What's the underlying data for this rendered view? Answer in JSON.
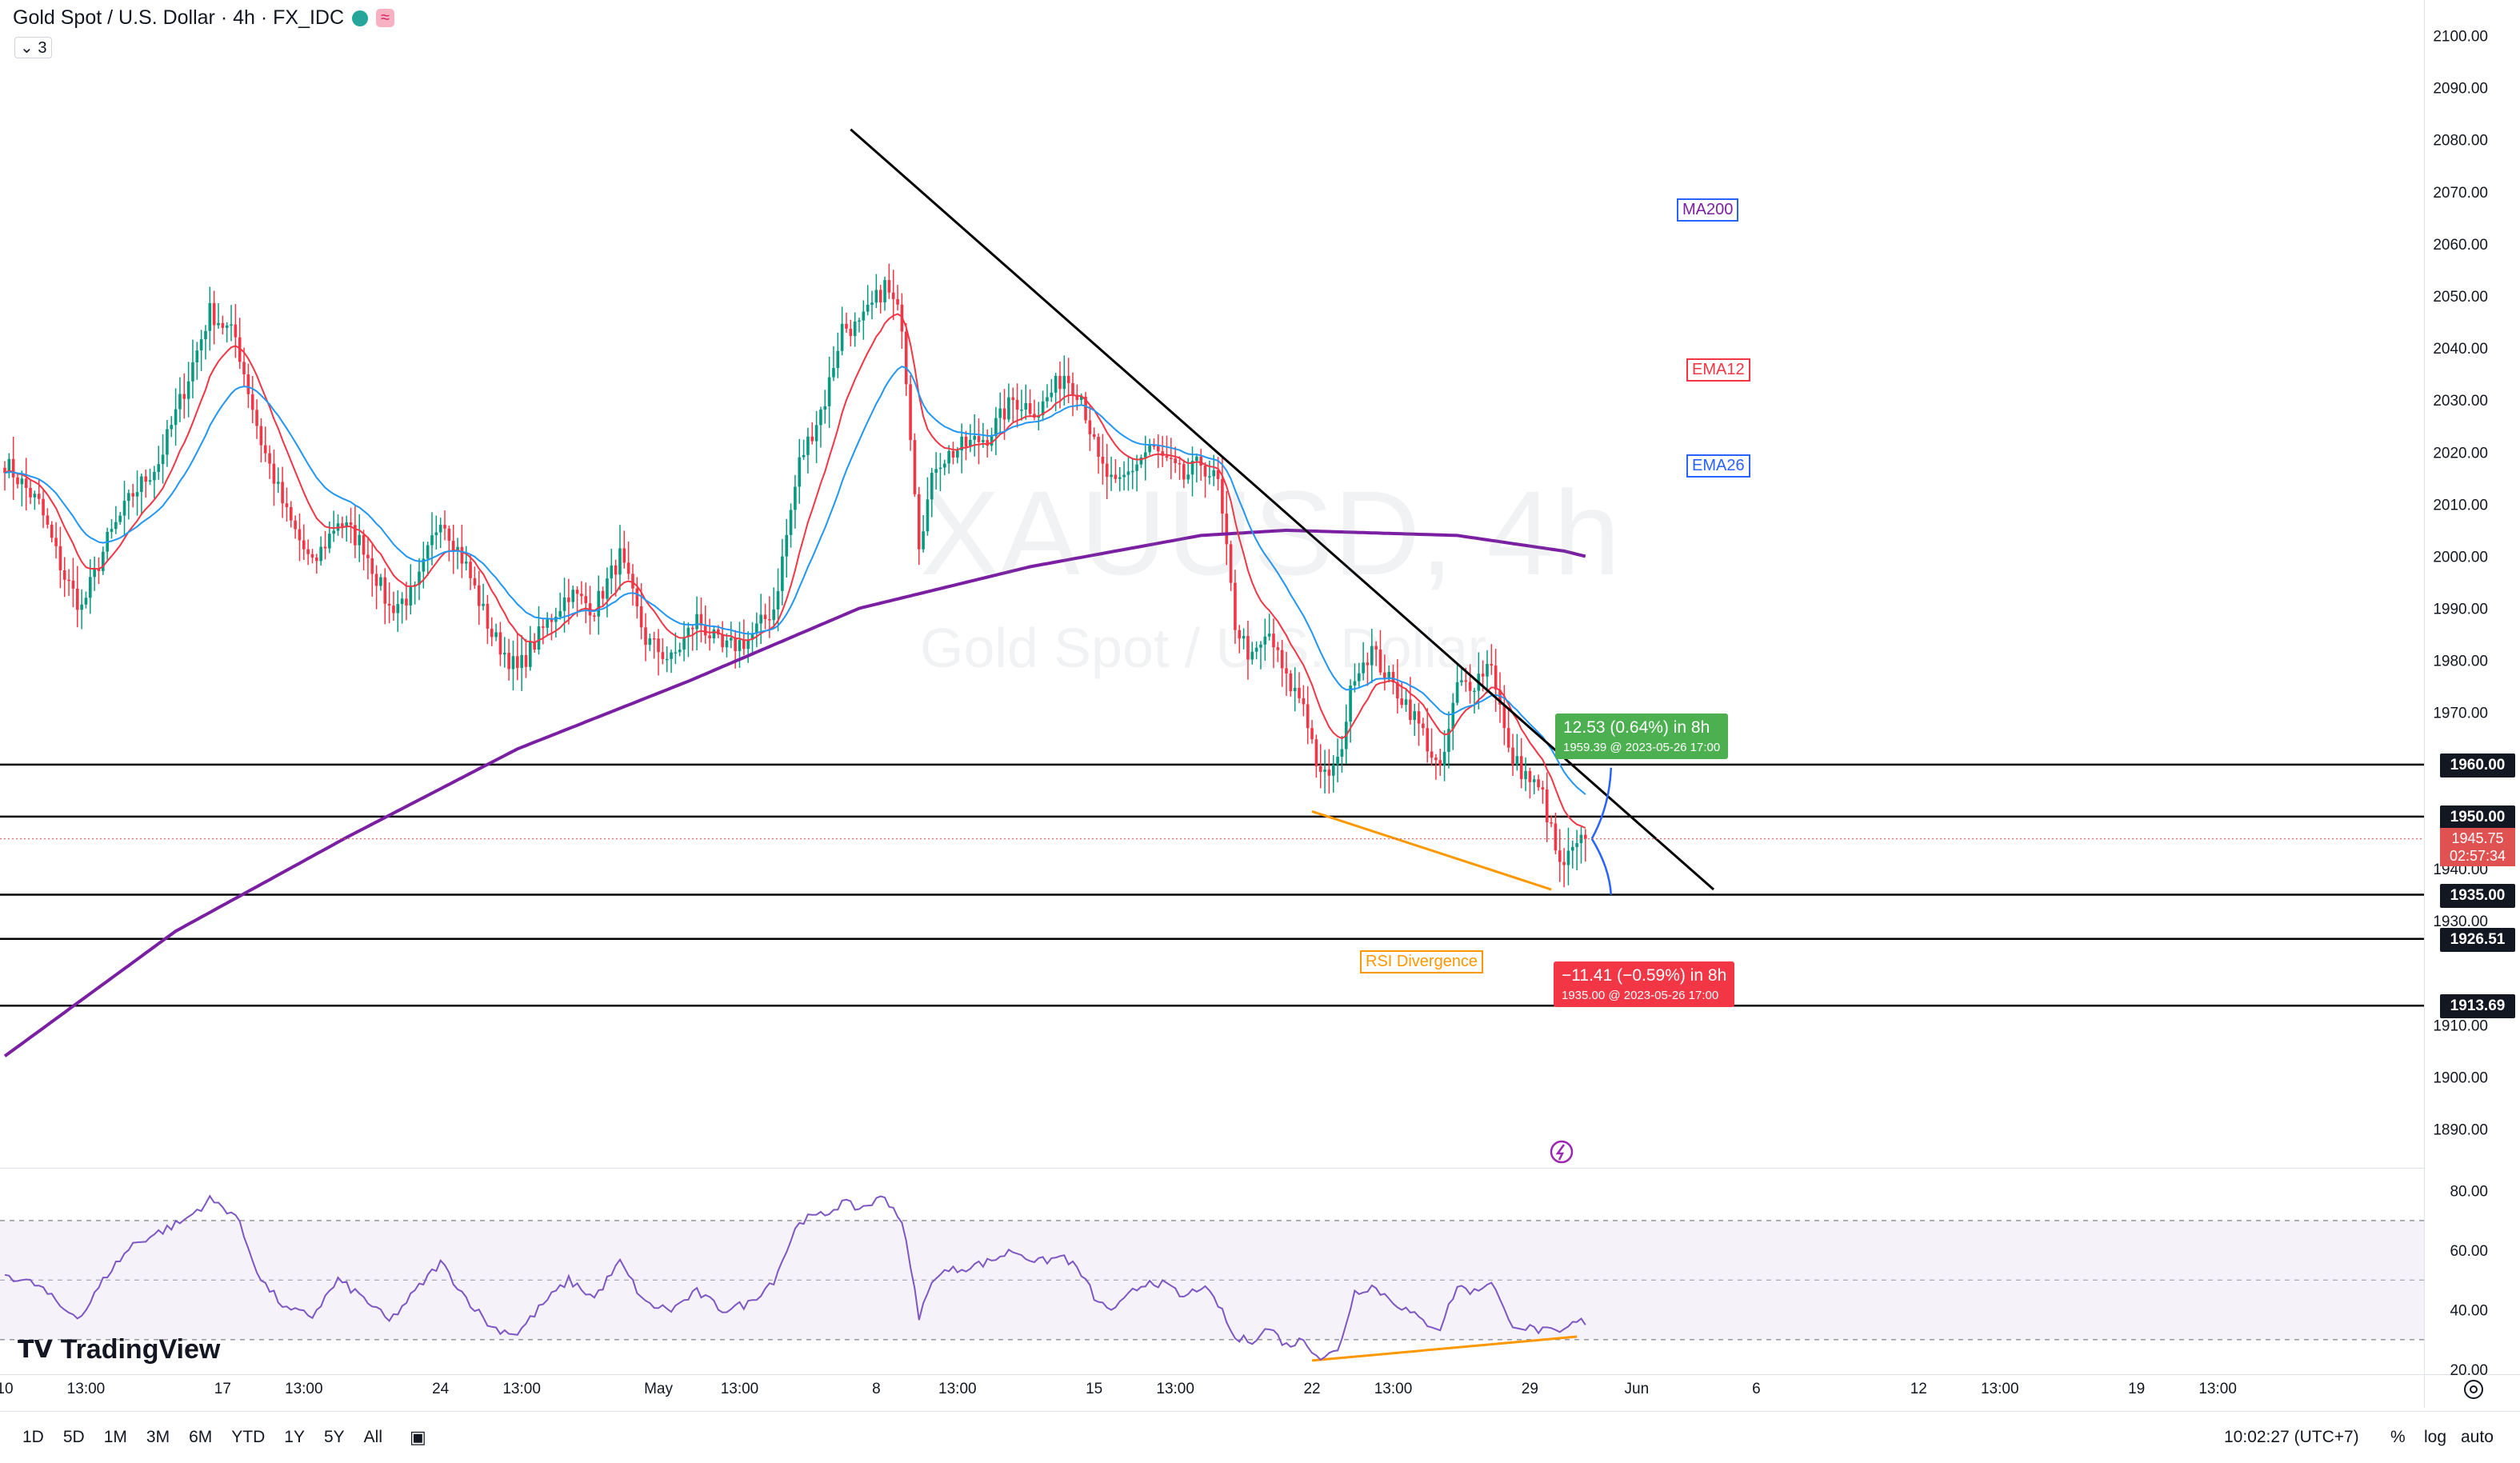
{
  "header": {
    "symbol_title": "Gold Spot / U.S. Dollar · 4h · FX_IDC",
    "badge": "≈",
    "indicator_count": "3"
  },
  "watermark": {
    "ticker": "XAUUSD, 4h",
    "name": "Gold Spot / U.S. Dollar"
  },
  "colors": {
    "up": "#089981",
    "down": "#f23645",
    "ma200": "#7b1fa2",
    "ema12": "#f23645",
    "ema26": "#2196f3",
    "trendline": "#000000",
    "divergence": "#ff9800",
    "rsi": "#7e57c2"
  },
  "legend_labels": {
    "ma200": "MA200",
    "ema12": "EMA12",
    "ema26": "EMA26"
  },
  "annotations": {
    "rsi_divergence": "RSI Divergence"
  },
  "measure_up": {
    "title": "12.53 (0.64%) in 8h",
    "detail": "1959.39 @ 2023-05-26  17:00"
  },
  "measure_down": {
    "title": "−11.41 (−0.59%) in 8h",
    "detail": "1935.00 @ 2023-05-26  17:00"
  },
  "price_axis": {
    "ticks": [
      "2100.00",
      "2090.00",
      "2080.00",
      "2070.00",
      "2060.00",
      "2050.00",
      "2040.00",
      "2030.00",
      "2020.00",
      "2010.00",
      "2000.00",
      "1990.00",
      "1980.00",
      "1970.00",
      "1940.00",
      "1930.00",
      "1910.00",
      "1900.00",
      "1890.00"
    ],
    "tick_values": [
      2100,
      2090,
      2080,
      2070,
      2060,
      2050,
      2040,
      2030,
      2020,
      2010,
      2000,
      1990,
      1980,
      1970,
      1940,
      1930,
      1910,
      1900,
      1890
    ],
    "level_tags": [
      "1960.00",
      "1950.00",
      "1935.00",
      "1926.51",
      "1913.69"
    ],
    "level_values": [
      1960,
      1950,
      1935,
      1926.51,
      1913.69
    ],
    "current_price": "1945.75",
    "countdown": "02:57:34"
  },
  "rsi_axis": {
    "ticks": [
      "80.00",
      "60.00",
      "40.00",
      "20.00"
    ],
    "tick_values": [
      80,
      60,
      40,
      20
    ],
    "upper": 70,
    "mid": 50,
    "lower": 30
  },
  "time_axis": {
    "labels": [
      "10",
      "13:00",
      "17",
      "13:00",
      "24",
      "13:00",
      "May",
      "13:00",
      "8",
      "13:00",
      "15",
      "13:00",
      "22",
      "13:00",
      "29",
      "Jun",
      "6",
      "12",
      "13:00",
      "19",
      "13:00"
    ],
    "label_index": [
      0,
      19,
      51,
      70,
      102,
      121,
      153,
      172,
      204,
      223,
      255,
      274,
      306,
      325,
      357,
      382,
      410,
      448,
      467,
      499,
      518
    ]
  },
  "bottom_bar": {
    "timeframes": [
      "1D",
      "5D",
      "1M",
      "3M",
      "6M",
      "YTD",
      "1Y",
      "5Y",
      "All"
    ],
    "clock": "10:02:27 (UTC+7)",
    "percent": "%",
    "log": "log",
    "auto": "auto"
  },
  "brand": "TradingView",
  "chart_data": {
    "type": "candlestick",
    "title": "Gold Spot / U.S. Dollar · 4h · FX_IDC",
    "price_range": [
      1885,
      2105
    ],
    "rsi_range": [
      20,
      85
    ],
    "horizontal_levels": [
      1960,
      1950,
      1935,
      1926.51,
      1913.69
    ],
    "trendline": {
      "from": {
        "i": 198,
        "price": 2082
      },
      "to": {
        "i": 400,
        "price": 1936
      }
    },
    "divergence_price": {
      "from": {
        "i": 306,
        "price": 1951
      },
      "to": {
        "i": 362,
        "price": 1936
      }
    },
    "divergence_rsi": {
      "from": {
        "i": 306,
        "rsi": 23
      },
      "to": {
        "i": 368,
        "rsi": 31
      }
    },
    "anchor_points": [
      [
        0,
        2018
      ],
      [
        8,
        2010
      ],
      [
        14,
        1996
      ],
      [
        18,
        1990
      ],
      [
        24,
        2003
      ],
      [
        30,
        2012
      ],
      [
        36,
        2018
      ],
      [
        42,
        2032
      ],
      [
        48,
        2047
      ],
      [
        54,
        2042
      ],
      [
        60,
        2022
      ],
      [
        66,
        2008
      ],
      [
        72,
        1998
      ],
      [
        78,
        2007
      ],
      [
        84,
        2002
      ],
      [
        90,
        1990
      ],
      [
        96,
        1993
      ],
      [
        102,
        2008
      ],
      [
        108,
        1998
      ],
      [
        114,
        1985
      ],
      [
        120,
        1978
      ],
      [
        126,
        1986
      ],
      [
        132,
        1993
      ],
      [
        138,
        1990
      ],
      [
        144,
        2000
      ],
      [
        150,
        1984
      ],
      [
        156,
        1980
      ],
      [
        162,
        1988
      ],
      [
        168,
        1982
      ],
      [
        174,
        1984
      ],
      [
        180,
        1990
      ],
      [
        186,
        2018
      ],
      [
        192,
        2030
      ],
      [
        196,
        2044
      ],
      [
        200,
        2044
      ],
      [
        206,
        2052
      ],
      [
        210,
        2045
      ],
      [
        214,
        2003
      ],
      [
        218,
        2018
      ],
      [
        224,
        2021
      ],
      [
        230,
        2023
      ],
      [
        236,
        2030
      ],
      [
        242,
        2028
      ],
      [
        248,
        2035
      ],
      [
        252,
        2031
      ],
      [
        256,
        2018
      ],
      [
        260,
        2013
      ],
      [
        264,
        2017
      ],
      [
        268,
        2021
      ],
      [
        272,
        2018
      ],
      [
        276,
        2015
      ],
      [
        280,
        2018
      ],
      [
        284,
        2014
      ],
      [
        288,
        1987
      ],
      [
        292,
        1980
      ],
      [
        296,
        1985
      ],
      [
        300,
        1976
      ],
      [
        304,
        1972
      ],
      [
        308,
        1957
      ],
      [
        312,
        1960
      ],
      [
        316,
        1978
      ],
      [
        320,
        1982
      ],
      [
        324,
        1976
      ],
      [
        328,
        1972
      ],
      [
        332,
        1966
      ],
      [
        336,
        1958
      ],
      [
        340,
        1975
      ],
      [
        344,
        1976
      ],
      [
        348,
        1980
      ],
      [
        352,
        1962
      ],
      [
        356,
        1958
      ],
      [
        360,
        1954
      ],
      [
        364,
        1940
      ],
      [
        368,
        1944
      ],
      [
        370,
        1945.75
      ]
    ],
    "rsi_anchor_points": [
      [
        0,
        52
      ],
      [
        8,
        48
      ],
      [
        14,
        40
      ],
      [
        18,
        38
      ],
      [
        24,
        52
      ],
      [
        30,
        62
      ],
      [
        36,
        66
      ],
      [
        42,
        70
      ],
      [
        48,
        77
      ],
      [
        54,
        72
      ],
      [
        60,
        50
      ],
      [
        66,
        40
      ],
      [
        72,
        38
      ],
      [
        78,
        50
      ],
      [
        84,
        44
      ],
      [
        90,
        36
      ],
      [
        96,
        46
      ],
      [
        102,
        56
      ],
      [
        108,
        44
      ],
      [
        114,
        34
      ],
      [
        120,
        32
      ],
      [
        126,
        42
      ],
      [
        132,
        50
      ],
      [
        138,
        44
      ],
      [
        144,
        56
      ],
      [
        150,
        42
      ],
      [
        156,
        40
      ],
      [
        162,
        46
      ],
      [
        168,
        40
      ],
      [
        174,
        42
      ],
      [
        180,
        50
      ],
      [
        186,
        70
      ],
      [
        192,
        72
      ],
      [
        196,
        76
      ],
      [
        200,
        74
      ],
      [
        206,
        78
      ],
      [
        210,
        70
      ],
      [
        214,
        38
      ],
      [
        218,
        52
      ],
      [
        224,
        54
      ],
      [
        230,
        56
      ],
      [
        236,
        60
      ],
      [
        242,
        56
      ],
      [
        248,
        58
      ],
      [
        252,
        52
      ],
      [
        256,
        42
      ],
      [
        260,
        40
      ],
      [
        264,
        46
      ],
      [
        268,
        50
      ],
      [
        272,
        48
      ],
      [
        276,
        44
      ],
      [
        280,
        48
      ],
      [
        284,
        42
      ],
      [
        288,
        30
      ],
      [
        292,
        30
      ],
      [
        296,
        34
      ],
      [
        300,
        28
      ],
      [
        304,
        30
      ],
      [
        308,
        24
      ],
      [
        312,
        26
      ],
      [
        316,
        46
      ],
      [
        320,
        48
      ],
      [
        324,
        44
      ],
      [
        328,
        40
      ],
      [
        332,
        36
      ],
      [
        336,
        34
      ],
      [
        340,
        48
      ],
      [
        344,
        46
      ],
      [
        348,
        50
      ],
      [
        352,
        36
      ],
      [
        356,
        34
      ],
      [
        360,
        33
      ],
      [
        364,
        32
      ],
      [
        368,
        36
      ],
      [
        370,
        36
      ]
    ]
  }
}
